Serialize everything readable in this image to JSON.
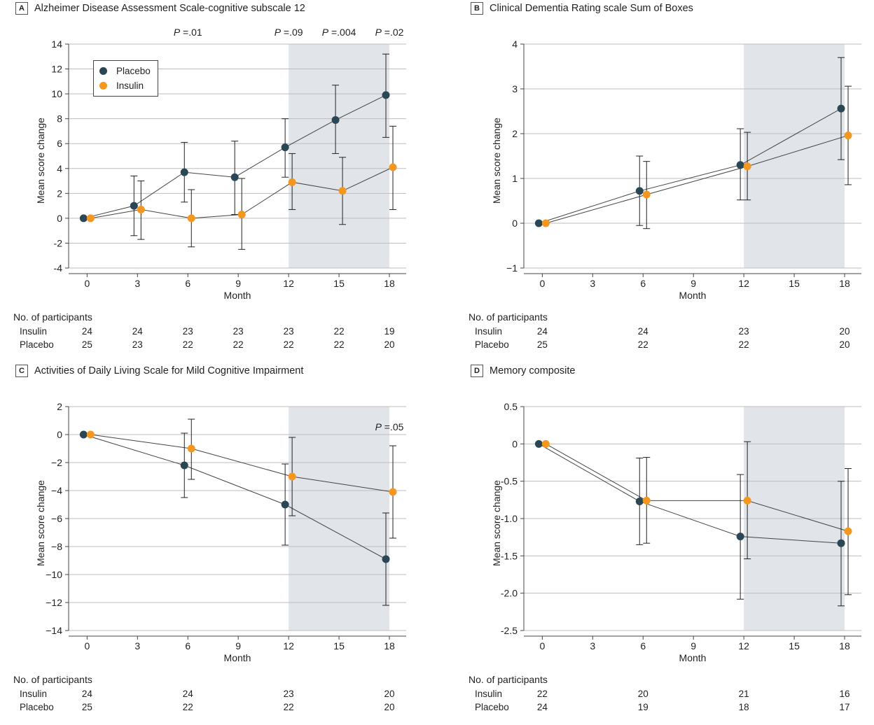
{
  "colors": {
    "placebo": "#2b4654",
    "insulin": "#f4971e",
    "shade": "#e1e5e9",
    "grid": "#bdbdbd",
    "axis": "#444444"
  },
  "table_title": "No. of participants",
  "chart_data": [
    {
      "type": "line",
      "label": "A",
      "title": "Alzheimer Disease Assessment Scale-cognitive subscale 12",
      "xlabel": "Month",
      "ylabel": "Mean score change",
      "ylim": [
        -4,
        14
      ],
      "yticks": [
        "14",
        "12",
        "10",
        "8",
        "6",
        "4",
        "2",
        "0",
        "-2",
        "-4"
      ],
      "xticks": [
        "0",
        "3",
        "6",
        "9",
        "12",
        "15",
        "18"
      ],
      "shaded_region": [
        12,
        18
      ],
      "legend": {
        "placement": "top-left",
        "entries": [
          "Placebo",
          "Insulin"
        ]
      },
      "pvalues": [
        {
          "x": 6,
          "label": "=.01"
        },
        {
          "x": 12,
          "label": "=.09"
        },
        {
          "x": 15,
          "label": "=.004"
        },
        {
          "x": 18,
          "label": "=.02"
        }
      ],
      "series": [
        {
          "name": "Placebo",
          "x": [
            0,
            3,
            6,
            9,
            12,
            15,
            18
          ],
          "y": [
            0,
            1.0,
            3.7,
            3.3,
            5.7,
            7.9,
            9.9
          ],
          "lo": [
            0,
            -1.4,
            1.3,
            0.3,
            3.3,
            5.2,
            6.5
          ],
          "hi": [
            0,
            3.4,
            6.1,
            6.2,
            8.0,
            10.7,
            13.2
          ]
        },
        {
          "name": "Insulin",
          "x": [
            0,
            3,
            6,
            9,
            12,
            15,
            18
          ],
          "y": [
            0,
            0.7,
            0,
            0.3,
            2.9,
            2.2,
            4.1
          ],
          "lo": [
            0,
            -1.7,
            -2.3,
            -2.5,
            0.7,
            -0.5,
            0.7
          ],
          "hi": [
            0,
            3.0,
            2.3,
            3.2,
            5.2,
            4.9,
            7.4
          ]
        }
      ],
      "participants": {
        "months": [
          0,
          3,
          6,
          9,
          12,
          15,
          18
        ],
        "rows": [
          {
            "label": "Insulin",
            "values": [
              "24",
              "24",
              "23",
              "23",
              "23",
              "22",
              "19"
            ]
          },
          {
            "label": "Placebo",
            "values": [
              "25",
              "23",
              "22",
              "22",
              "22",
              "22",
              "20"
            ]
          }
        ]
      }
    },
    {
      "type": "line",
      "label": "B",
      "title": "Clinical Dementia Rating scale Sum of Boxes",
      "xlabel": "Month",
      "ylabel": "Mean score change",
      "ylim": [
        -1,
        4
      ],
      "yticks": [
        "4",
        "3",
        "2",
        "1",
        "0",
        "−1"
      ],
      "xticks": [
        "0",
        "3",
        "6",
        "9",
        "12",
        "15",
        "18"
      ],
      "shaded_region": [
        12,
        18
      ],
      "series": [
        {
          "name": "Placebo",
          "x": [
            0,
            6,
            12,
            18
          ],
          "y": [
            0,
            0.72,
            1.3,
            2.56
          ],
          "lo": [
            0,
            -0.05,
            0.52,
            1.42
          ],
          "hi": [
            0,
            1.5,
            2.11,
            3.7
          ]
        },
        {
          "name": "Insulin",
          "x": [
            0,
            6,
            12,
            18
          ],
          "y": [
            0,
            0.64,
            1.27,
            1.96
          ],
          "lo": [
            0,
            -0.12,
            0.52,
            0.86
          ],
          "hi": [
            0,
            1.38,
            2.03,
            3.06
          ]
        }
      ],
      "participants": {
        "months": [
          0,
          6,
          12,
          18
        ],
        "rows": [
          {
            "label": "Insulin",
            "values": [
              "24",
              "24",
              "23",
              "20"
            ]
          },
          {
            "label": "Placebo",
            "values": [
              "25",
              "22",
              "22",
              "20"
            ]
          }
        ]
      }
    },
    {
      "type": "line",
      "label": "C",
      "title": "Activities of Daily Living Scale for Mild Cognitive Impairment",
      "xlabel": "Month",
      "ylabel": "Mean score change",
      "ylim": [
        -14,
        2
      ],
      "yticks": [
        "2",
        "0",
        "−2",
        "−4",
        "−6",
        "−8",
        "−10",
        "−12",
        "−14"
      ],
      "xticks": [
        "0",
        "3",
        "6",
        "9",
        "12",
        "15",
        "18"
      ],
      "shaded_region": [
        12,
        18
      ],
      "pvalues": [
        {
          "x": 18,
          "label": "=.05"
        }
      ],
      "series": [
        {
          "name": "Placebo",
          "x": [
            0,
            6,
            12,
            18
          ],
          "y": [
            0,
            -2.2,
            -5.0,
            -8.9
          ],
          "lo": [
            0,
            -4.5,
            -7.9,
            -12.2
          ],
          "hi": [
            0,
            0.1,
            -2.1,
            -5.6
          ]
        },
        {
          "name": "Insulin",
          "x": [
            0,
            6,
            12,
            18
          ],
          "y": [
            0,
            -1.0,
            -3.0,
            -4.1
          ],
          "lo": [
            0,
            -3.2,
            -5.8,
            -7.4
          ],
          "hi": [
            0,
            1.1,
            -0.2,
            -0.8
          ]
        }
      ],
      "participants": {
        "months": [
          0,
          6,
          12,
          18
        ],
        "rows": [
          {
            "label": "Insulin",
            "values": [
              "24",
              "24",
              "23",
              "20"
            ]
          },
          {
            "label": "Placebo",
            "values": [
              "25",
              "22",
              "22",
              "20"
            ]
          }
        ]
      }
    },
    {
      "type": "line",
      "label": "D",
      "title": "Memory composite",
      "xlabel": "Month",
      "ylabel": "Mean score change",
      "ylim": [
        -2.5,
        0.5
      ],
      "yticks": [
        "0.5",
        "0",
        "-0.5",
        "-1.0",
        "-1.5",
        "-2.0",
        "-2.5"
      ],
      "xticks": [
        "0",
        "3",
        "6",
        "9",
        "12",
        "15",
        "18"
      ],
      "shaded_region": [
        12,
        18
      ],
      "series": [
        {
          "name": "Placebo",
          "x": [
            0,
            6,
            12,
            18
          ],
          "y": [
            0,
            -0.77,
            -1.24,
            -1.33
          ],
          "lo": [
            0,
            -1.35,
            -2.08,
            -2.17
          ],
          "hi": [
            0,
            -0.19,
            -0.41,
            -0.5
          ]
        },
        {
          "name": "Insulin",
          "x": [
            0,
            6,
            12,
            18
          ],
          "y": [
            0,
            -0.76,
            -0.76,
            -1.17
          ],
          "lo": [
            0,
            -1.33,
            -1.54,
            -2.02
          ],
          "hi": [
            0,
            -0.18,
            0.03,
            -0.33
          ]
        }
      ],
      "participants": {
        "months": [
          0,
          6,
          12,
          18
        ],
        "rows": [
          {
            "label": "Insulin",
            "values": [
              "22",
              "20",
              "21",
              "16"
            ]
          },
          {
            "label": "Placebo",
            "values": [
              "24",
              "19",
              "18",
              "17"
            ]
          }
        ]
      }
    }
  ]
}
